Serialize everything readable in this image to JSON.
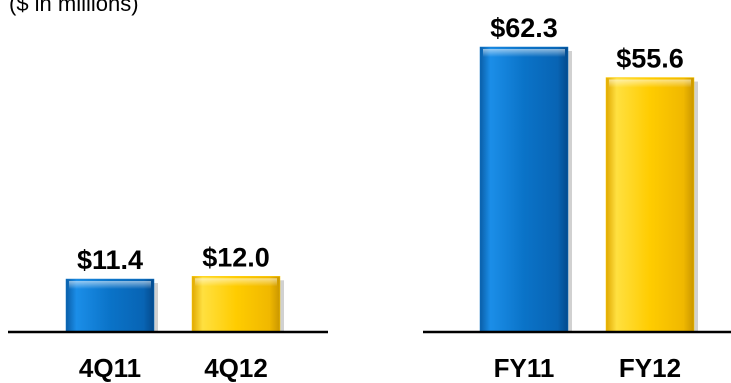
{
  "subtitle": "($ in millions)",
  "colors": {
    "blue": "#0a73c8",
    "gold": "#ffcc00",
    "axis": "#000000"
  },
  "chart_data": [
    {
      "type": "bar",
      "categories": [
        "4Q11",
        "4Q12"
      ],
      "values": [
        11.4,
        12.0
      ],
      "value_labels": [
        "$11.4",
        "$12.0"
      ],
      "bar_colors": [
        "blue",
        "gold"
      ],
      "title": "",
      "xlabel": "",
      "ylabel": "",
      "unit": "$ in millions",
      "grid": false
    },
    {
      "type": "bar",
      "categories": [
        "FY11",
        "FY12"
      ],
      "values": [
        62.3,
        55.6
      ],
      "value_labels": [
        "$62.3",
        "$55.6"
      ],
      "bar_colors": [
        "blue",
        "gold"
      ],
      "title": "",
      "xlabel": "",
      "ylabel": "",
      "unit": "$ in millions",
      "grid": false
    }
  ]
}
